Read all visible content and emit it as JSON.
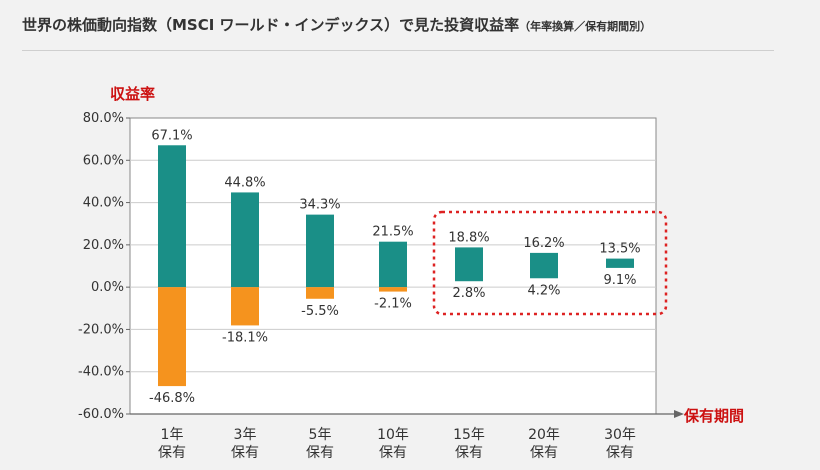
{
  "title": {
    "main": "世界の株価動向指数（MSCI ワールド・インデックス）で見た投資収益率",
    "sub": "（年率換算／保有期間別）"
  },
  "colors": {
    "positive": "#1a8f87",
    "negative": "#f5931e",
    "axis_label": "#cc1111",
    "highlight": "#dd2222"
  },
  "chart_data": {
    "type": "bar",
    "ylabel": "収益率",
    "xlabel": "保有期間",
    "ylim": [
      -60,
      80
    ],
    "y_ticks": [
      80,
      60,
      40,
      20,
      0,
      -20,
      -40,
      -60
    ],
    "y_tick_labels": [
      "80.0%",
      "60.0%",
      "40.0%",
      "20.0%",
      "0.0%",
      "-20.0%",
      "-40.0%",
      "-60.0%"
    ],
    "grid": true,
    "categories": [
      [
        "1年",
        "保有"
      ],
      [
        "3年",
        "保有"
      ],
      [
        "5年",
        "保有"
      ],
      [
        "10年",
        "保有"
      ],
      [
        "15年",
        "保有"
      ],
      [
        "20年",
        "保有"
      ],
      [
        "30年",
        "保有"
      ]
    ],
    "series": [
      {
        "values": [
          {
            "max": 67.1,
            "min": -46.8
          },
          {
            "max": 44.8,
            "min": -18.1
          },
          {
            "max": 34.3,
            "min": -5.5
          },
          {
            "max": 21.5,
            "min": -2.1
          },
          {
            "max": 18.8,
            "min": 2.8
          },
          {
            "max": 16.2,
            "min": 4.2
          },
          {
            "max": 13.5,
            "min": 9.1
          }
        ]
      }
    ],
    "value_labels": {
      "max": [
        "67.1%",
        "44.8%",
        "34.3%",
        "21.5%",
        "18.8%",
        "16.2%",
        "13.5%"
      ],
      "min": [
        "-46.8%",
        "-18.1%",
        "-5.5%",
        "-2.1%",
        "2.8%",
        "4.2%",
        "9.1%"
      ]
    },
    "highlighted_categories": [
      4,
      5,
      6
    ]
  }
}
